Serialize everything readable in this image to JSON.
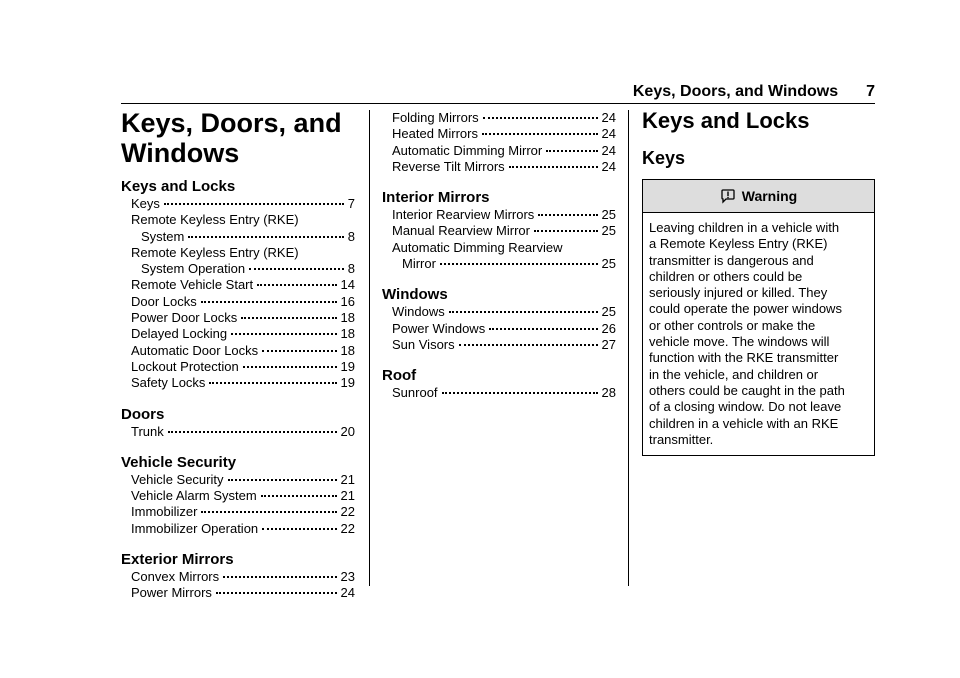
{
  "header": {
    "title": "Keys, Doors, and Windows",
    "page": 7
  },
  "chapter_title": [
    "Keys, Doors, and",
    "Windows"
  ],
  "toc_columns": [
    [
      {
        "heading": "Keys and Locks",
        "entries": [
          {
            "lines": [
              "Keys"
            ],
            "page": 7
          },
          {
            "lines": [
              "Remote Keyless Entry (RKE)",
              "System"
            ],
            "page": 8
          },
          {
            "lines": [
              "Remote Keyless Entry (RKE)",
              "System Operation"
            ],
            "page": 8
          },
          {
            "lines": [
              "Remote Vehicle Start"
            ],
            "page": 14
          },
          {
            "lines": [
              "Door Locks"
            ],
            "page": 16
          },
          {
            "lines": [
              "Power Door Locks"
            ],
            "page": 18
          },
          {
            "lines": [
              "Delayed Locking"
            ],
            "page": 18
          },
          {
            "lines": [
              "Automatic Door Locks"
            ],
            "page": 18
          },
          {
            "lines": [
              "Lockout Protection"
            ],
            "page": 19
          },
          {
            "lines": [
              "Safety Locks"
            ],
            "page": 19
          }
        ]
      },
      {
        "heading": "Doors",
        "entries": [
          {
            "lines": [
              "Trunk"
            ],
            "page": 20
          }
        ]
      },
      {
        "heading": "Vehicle Security",
        "entries": [
          {
            "lines": [
              "Vehicle Security"
            ],
            "page": 21
          },
          {
            "lines": [
              "Vehicle Alarm System"
            ],
            "page": 21
          },
          {
            "lines": [
              "Immobilizer"
            ],
            "page": 22
          },
          {
            "lines": [
              "Immobilizer Operation"
            ],
            "page": 22
          }
        ]
      },
      {
        "heading": "Exterior Mirrors",
        "entries": [
          {
            "lines": [
              "Convex Mirrors"
            ],
            "page": 23
          },
          {
            "lines": [
              "Power Mirrors"
            ],
            "page": 24
          }
        ]
      }
    ],
    [
      {
        "entries": [
          {
            "lines": [
              "Folding Mirrors"
            ],
            "page": 24
          },
          {
            "lines": [
              "Heated Mirrors"
            ],
            "page": 24
          },
          {
            "lines": [
              "Automatic Dimming Mirror"
            ],
            "page": 24
          },
          {
            "lines": [
              "Reverse Tilt Mirrors"
            ],
            "page": 24
          }
        ]
      },
      {
        "heading": "Interior Mirrors",
        "entries": [
          {
            "lines": [
              "Interior Rearview Mirrors"
            ],
            "page": 25
          },
          {
            "lines": [
              "Manual Rearview Mirror"
            ],
            "page": 25
          },
          {
            "lines": [
              "Automatic Dimming Rearview",
              "Mirror"
            ],
            "page": 25
          }
        ]
      },
      {
        "heading": "Windows",
        "entries": [
          {
            "lines": [
              "Windows"
            ],
            "page": 25
          },
          {
            "lines": [
              "Power Windows"
            ],
            "page": 26
          },
          {
            "lines": [
              "Sun Visors"
            ],
            "page": 27
          }
        ]
      },
      {
        "heading": "Roof",
        "entries": [
          {
            "lines": [
              "Sunroof"
            ],
            "page": 28
          }
        ]
      }
    ]
  ],
  "section_title": "Keys and Locks",
  "subsection_title": "Keys",
  "warning": {
    "label": "Warning",
    "lines": [
      "Leaving children in a vehicle with",
      "a Remote Keyless Entry (RKE)",
      "transmitter is dangerous and",
      "children or others could be",
      "seriously injured or killed. They",
      "could operate the power windows",
      "or other controls or make the",
      "vehicle move. The windows will",
      "function with the RKE transmitter",
      "in the vehicle, and children or",
      "others could be caught in the path",
      "of a closing window. Do not leave",
      "children in a vehicle with an RKE",
      "transmitter."
    ]
  }
}
